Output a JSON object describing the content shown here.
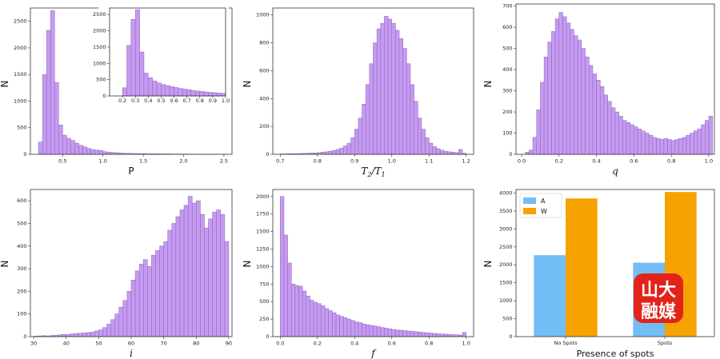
{
  "chart_data": [
    {
      "id": "P",
      "type": "bar",
      "xlabel": "P",
      "xlabel_style": "plain",
      "ylabel": "N",
      "xlim": [
        0.1,
        2.6
      ],
      "ylim": [
        0,
        2750
      ],
      "xticks": [
        "0.5",
        "1.0",
        "1.5",
        "2.0",
        "2.5"
      ],
      "xtick_values": [
        0.5,
        1.0,
        1.5,
        2.0,
        2.5
      ],
      "yticks": [
        "0",
        "500",
        "1000",
        "1500",
        "2000",
        "2500"
      ],
      "ytick_values": [
        0,
        500,
        1000,
        1500,
        2000,
        2500
      ],
      "bin_start": 0.2,
      "bin_width": 0.05,
      "values": [
        230,
        1500,
        2330,
        2700,
        1350,
        550,
        360,
        300,
        260,
        210,
        170,
        140,
        110,
        90,
        80,
        70,
        50,
        40,
        35,
        30,
        25,
        20,
        18,
        15,
        15,
        12,
        12,
        10,
        10,
        10,
        8,
        8,
        8,
        6,
        6,
        5,
        5,
        5,
        4,
        4,
        4,
        3,
        3,
        3,
        3,
        2,
        2
      ]
    },
    {
      "id": "P-inset",
      "type": "bar",
      "xlim": [
        0.1,
        1.0
      ],
      "ylim": [
        0,
        2700
      ],
      "xticks": [
        "0.2",
        "0.3",
        "0.4",
        "0.5",
        "0.6",
        "0.7",
        "0.8",
        "0.9",
        "1.0"
      ],
      "xtick_values": [
        0.2,
        0.3,
        0.4,
        0.5,
        0.6,
        0.7,
        0.8,
        0.9,
        1.0
      ],
      "yticks": [
        "0",
        "500",
        "1000",
        "1500",
        "2000",
        "2500"
      ],
      "ytick_values": [
        0,
        500,
        1000,
        1500,
        2000,
        2500
      ],
      "bin_start": 0.2,
      "bin_width": 0.0333,
      "values": [
        250,
        1550,
        2350,
        2650,
        1350,
        700,
        560,
        460,
        400,
        350,
        320,
        290,
        260,
        230,
        210,
        190,
        170,
        150,
        140,
        120,
        110,
        100,
        90,
        80
      ]
    },
    {
      "id": "T2T1",
      "type": "bar",
      "xlabel": "T2/T1",
      "xlabel_style": "ratio",
      "ylabel": "N",
      "xlim": [
        0.68,
        1.22
      ],
      "ylim": [
        0,
        1050
      ],
      "xticks": [
        "0.7",
        "0.8",
        "0.9",
        "1.0",
        "1.1",
        "1.2"
      ],
      "xtick_values": [
        0.7,
        0.8,
        0.9,
        1.0,
        1.1,
        1.2
      ],
      "yticks": [
        "0",
        "200",
        "400",
        "600",
        "800",
        "1000"
      ],
      "ytick_values": [
        0,
        200,
        400,
        600,
        800,
        1000
      ],
      "bin_start": 0.7,
      "bin_width": 0.01,
      "values": [
        3,
        3,
        4,
        5,
        5,
        6,
        7,
        8,
        9,
        10,
        12,
        15,
        18,
        22,
        28,
        35,
        45,
        60,
        80,
        120,
        180,
        260,
        360,
        500,
        650,
        800,
        900,
        940,
        990,
        970,
        940,
        890,
        830,
        760,
        650,
        500,
        380,
        260,
        180,
        120,
        80,
        55,
        40,
        30,
        22,
        18,
        15,
        12,
        35,
        8
      ]
    },
    {
      "id": "q",
      "type": "bar",
      "xlabel": "q",
      "xlabel_style": "italic",
      "ylabel": "N",
      "xlim": [
        -0.03,
        1.03
      ],
      "ylim": [
        0,
        710
      ],
      "xticks": [
        "0.0",
        "0.2",
        "0.4",
        "0.6",
        "0.8",
        "1.0"
      ],
      "xtick_values": [
        0,
        0.2,
        0.4,
        0.6,
        0.8,
        1.0
      ],
      "yticks": [
        "0",
        "100",
        "200",
        "300",
        "400",
        "500",
        "600",
        "700"
      ],
      "ytick_values": [
        0,
        100,
        200,
        300,
        400,
        500,
        600,
        700
      ],
      "bin_start": 0.02,
      "bin_width": 0.02,
      "values": [
        10,
        20,
        80,
        210,
        340,
        460,
        530,
        580,
        640,
        670,
        650,
        620,
        590,
        560,
        540,
        500,
        460,
        420,
        380,
        350,
        320,
        280,
        250,
        220,
        200,
        180,
        160,
        150,
        140,
        130,
        120,
        110,
        100,
        90,
        80,
        75,
        70,
        75,
        70,
        65,
        70,
        75,
        80,
        90,
        100,
        110,
        120,
        140,
        160,
        180,
        220,
        200
      ]
    },
    {
      "id": "i",
      "type": "bar",
      "xlabel": "i",
      "xlabel_style": "italic",
      "ylabel": "N",
      "xlim": [
        29,
        91
      ],
      "ylim": [
        0,
        650
      ],
      "xticks": [
        "30",
        "40",
        "50",
        "60",
        "70",
        "80",
        "90"
      ],
      "xtick_values": [
        30,
        40,
        50,
        60,
        70,
        80,
        90
      ],
      "yticks": [
        "0",
        "100",
        "200",
        "300",
        "400",
        "500",
        "600"
      ],
      "ytick_values": [
        0,
        100,
        200,
        300,
        400,
        500,
        600
      ],
      "bin_start": 30,
      "bin_width": 1.25,
      "values": [
        2,
        3,
        4,
        3,
        5,
        6,
        8,
        10,
        9,
        12,
        14,
        15,
        16,
        18,
        20,
        25,
        30,
        40,
        55,
        75,
        100,
        130,
        160,
        200,
        250,
        290,
        320,
        340,
        310,
        360,
        380,
        400,
        420,
        470,
        500,
        530,
        560,
        580,
        620,
        590,
        600,
        540,
        480,
        520,
        550,
        560,
        540,
        420
      ]
    },
    {
      "id": "f",
      "type": "bar",
      "xlabel": "f",
      "xlabel_style": "italic",
      "ylabel": "N",
      "xlim": [
        -0.04,
        1.04
      ],
      "ylim": [
        0,
        2100
      ],
      "xticks": [
        "0.0",
        "0.2",
        "0.4",
        "0.6",
        "0.8",
        "1.0"
      ],
      "xtick_values": [
        0,
        0.2,
        0.4,
        0.6,
        0.8,
        1.0
      ],
      "yticks": [
        "0",
        "250",
        "500",
        "750",
        "1000",
        "1250",
        "1500",
        "1750",
        "2000"
      ],
      "ytick_values": [
        0,
        250,
        500,
        750,
        1000,
        1250,
        1500,
        1750,
        2000
      ],
      "bin_start": 0.0,
      "bin_width": 0.02,
      "values": [
        2000,
        1450,
        1050,
        750,
        730,
        720,
        650,
        580,
        520,
        490,
        470,
        440,
        400,
        370,
        340,
        310,
        290,
        270,
        250,
        230,
        210,
        200,
        180,
        170,
        160,
        150,
        140,
        130,
        120,
        110,
        100,
        95,
        90,
        85,
        80,
        75,
        70,
        65,
        60,
        55,
        50,
        45,
        40,
        38,
        35,
        30,
        28,
        25,
        22,
        60
      ]
    },
    {
      "id": "spots",
      "type": "bar",
      "xlabel": "Presence of spots",
      "xlabel_style": "plain",
      "ylabel": "N",
      "categories": [
        "No Spots",
        "Spots"
      ],
      "series": [
        {
          "name": "A",
          "values": [
            2270,
            2060
          ],
          "color": "#73bdf5"
        },
        {
          "name": "W",
          "values": [
            3850,
            4030
          ],
          "color": "#f6a200"
        }
      ],
      "ylim": [
        0,
        4100
      ],
      "yticks": [
        "0",
        "500",
        "1000",
        "1500",
        "2000",
        "2500",
        "3000",
        "3500",
        "4000"
      ],
      "ytick_values": [
        0,
        500,
        1000,
        1500,
        2000,
        2500,
        3000,
        3500,
        4000
      ],
      "legend": "top-left"
    }
  ],
  "watermark": {
    "line1": "山大",
    "line2": "融媒"
  }
}
